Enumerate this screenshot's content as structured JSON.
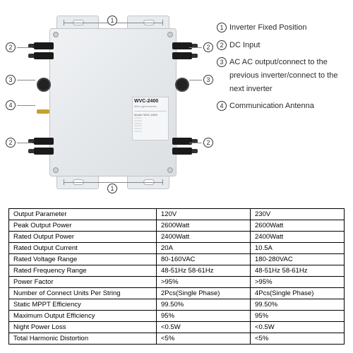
{
  "device": {
    "model": "WVC-2400",
    "subtitle": "Micro grid inverter",
    "label_model_line": "Model: WVC-2400"
  },
  "callouts": {
    "c1": "1",
    "c2": "2",
    "c3": "3",
    "c4": "4"
  },
  "legend": {
    "l1": "Inverter Fixed Position",
    "l2": "DC Input",
    "l3": "AC AC output/connect to the previous inverter/connect to the next inverter",
    "l4": "Communication Antenna"
  },
  "table": {
    "rows": [
      [
        "Output Parameter",
        "120V",
        "230V"
      ],
      [
        "Peak Output Power",
        "2600Watt",
        "2600Watt"
      ],
      [
        "Rated Output Power",
        "2400Watt",
        "2400Watt"
      ],
      [
        "Rated Output Current",
        "20A",
        "10.5A"
      ],
      [
        "Rated Voltage Range",
        "80-160VAC",
        "180-280VAC"
      ],
      [
        "Rated Frequency Range",
        "48-51Hz 58-61Hz",
        "48-51Hz 58-61Hz"
      ],
      [
        "Power Factor",
        ">95%",
        ">95%"
      ],
      [
        "Number of Connect Units Per String",
        "2Pcs(Single Phase)",
        "4Pcs(Single Phase)"
      ],
      [
        "Static MPPT Efficiency",
        "99.50%",
        "99.50%"
      ],
      [
        "Maximum Output Efficiency",
        "95%",
        "95%"
      ],
      [
        "Night Power Loss",
        "<0.5W",
        "<0.5W"
      ],
      [
        "Total Harmonic Distortion",
        "<5%",
        "<5%"
      ]
    ]
  },
  "colors": {
    "border": "#000000",
    "text": "#2a2a2a",
    "device_light": "#f0f2f4",
    "device_dark": "#dde0e3"
  }
}
